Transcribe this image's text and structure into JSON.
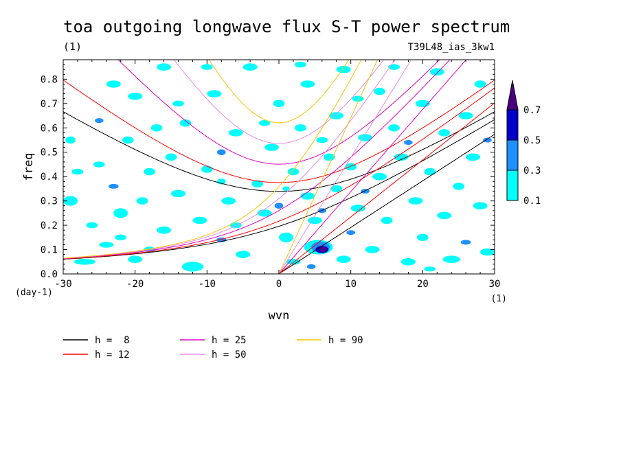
{
  "chart_data": {
    "type": "heatmap",
    "title": "toa outgoing longwave flux S-T power spectrum",
    "units_label": "(1)",
    "run_label": "T39L48_ias_3kw1",
    "xlabel": "wvn",
    "ylabel": "freq",
    "x_units": "(1)",
    "y_units": "(day-1)",
    "xlim": [
      -30,
      30
    ],
    "ylim": [
      0,
      0.88
    ],
    "x_ticks": [
      -30,
      -20,
      -10,
      0,
      10,
      20,
      30
    ],
    "x_tick_labels": [
      "-30",
      "-20",
      "-10",
      "0",
      "10",
      "20",
      "30"
    ],
    "y_ticks": [
      0,
      0.1,
      0.2,
      0.3,
      0.4,
      0.5,
      0.6,
      0.7,
      0.8
    ],
    "y_tick_labels": [
      "0.0",
      "0.1",
      "0.2",
      "0.3",
      "0.4",
      "0.5",
      "0.6",
      "0.7",
      "0.8"
    ],
    "colorbar": {
      "levels": [
        0.1,
        0.3,
        0.5,
        0.7
      ],
      "labels": [
        "0.1",
        "0.3",
        "0.5",
        "0.7"
      ],
      "colors": [
        "#00ffff",
        "#1e90ff",
        "#0000cd",
        "#4b0082"
      ]
    },
    "blobs": [
      [
        -29,
        0.55,
        0.7,
        0.015,
        1
      ],
      [
        -28,
        0.42,
        0.8,
        0.012,
        1
      ],
      [
        -29,
        0.3,
        1,
        0.02,
        1
      ],
      [
        -27,
        0.05,
        1.5,
        0.012,
        1
      ],
      [
        -25,
        0.45,
        0.8,
        0.012,
        1
      ],
      [
        -25,
        0.63,
        0.6,
        0.01,
        2
      ],
      [
        -24,
        0.12,
        1,
        0.012,
        1
      ],
      [
        -23,
        0.78,
        1,
        0.015,
        1
      ],
      [
        -23,
        0.36,
        0.7,
        0.01,
        2
      ],
      [
        -22,
        0.25,
        1,
        0.02,
        1
      ],
      [
        -21,
        0.55,
        0.8,
        0.015,
        1
      ],
      [
        -20,
        0.73,
        1,
        0.015,
        1
      ],
      [
        -20,
        0.06,
        1,
        0.015,
        1
      ],
      [
        -19,
        0.3,
        0.8,
        0.015,
        1
      ],
      [
        -18,
        0.42,
        0.8,
        0.015,
        1
      ],
      [
        -17,
        0.6,
        0.8,
        0.015,
        1
      ],
      [
        -16,
        0.18,
        1,
        0.015,
        1
      ],
      [
        -16,
        0.85,
        1,
        0.015,
        1
      ],
      [
        -15,
        0.48,
        0.8,
        0.015,
        1
      ],
      [
        -14,
        0.33,
        1,
        0.015,
        1
      ],
      [
        -13,
        0.62,
        0.8,
        0.015,
        1
      ],
      [
        -12,
        0.03,
        1.5,
        0.02,
        1
      ],
      [
        -11,
        0.22,
        1,
        0.015,
        1
      ],
      [
        -10,
        0.43,
        0.8,
        0.015,
        1
      ],
      [
        -9,
        0.74,
        1,
        0.015,
        1
      ],
      [
        -8,
        0.5,
        0.6,
        0.012,
        2
      ],
      [
        -8,
        0.14,
        0.7,
        0.01,
        2
      ],
      [
        -7,
        0.3,
        1,
        0.015,
        1
      ],
      [
        -6,
        0.58,
        1,
        0.015,
        1
      ],
      [
        -5,
        0.08,
        1,
        0.015,
        1
      ],
      [
        -4,
        0.85,
        1,
        0.015,
        1
      ],
      [
        -3,
        0.37,
        0.8,
        0.015,
        1
      ],
      [
        -2,
        0.25,
        1,
        0.015,
        1
      ],
      [
        -1,
        0.52,
        1,
        0.015,
        1
      ],
      [
        0,
        0.7,
        0.8,
        0.015,
        1
      ],
      [
        0,
        0.28,
        0.6,
        0.012,
        2
      ],
      [
        1,
        0.15,
        1,
        0.02,
        1
      ],
      [
        2,
        0.42,
        0.8,
        0.015,
        1
      ],
      [
        2,
        0.05,
        1,
        0.012,
        1
      ],
      [
        3,
        0.6,
        0.8,
        0.015,
        1
      ],
      [
        4,
        0.32,
        1,
        0.015,
        1
      ],
      [
        4,
        0.78,
        1,
        0.015,
        1
      ],
      [
        5,
        0.22,
        1,
        0.015,
        1
      ],
      [
        5.5,
        0.11,
        2,
        0.03,
        1
      ],
      [
        5.8,
        0.11,
        1.3,
        0.022,
        2
      ],
      [
        6,
        0.1,
        0.9,
        0.015,
        3
      ],
      [
        6.2,
        0.1,
        0.5,
        0.01,
        4
      ],
      [
        6,
        0.26,
        0.6,
        0.01,
        2
      ],
      [
        4.5,
        0.03,
        0.6,
        0.01,
        2
      ],
      [
        7,
        0.48,
        0.8,
        0.015,
        1
      ],
      [
        8,
        0.65,
        1,
        0.015,
        1
      ],
      [
        8,
        0.35,
        0.8,
        0.015,
        1
      ],
      [
        9,
        0.84,
        1,
        0.015,
        1
      ],
      [
        9,
        0.06,
        1,
        0.015,
        1
      ],
      [
        10,
        0.44,
        0.8,
        0.015,
        1
      ],
      [
        10,
        0.17,
        0.6,
        0.01,
        2
      ],
      [
        11,
        0.27,
        1,
        0.015,
        1
      ],
      [
        12,
        0.56,
        1,
        0.015,
        1
      ],
      [
        12,
        0.34,
        0.6,
        0.01,
        2
      ],
      [
        13,
        0.1,
        1,
        0.015,
        1
      ],
      [
        14,
        0.75,
        0.8,
        0.015,
        1
      ],
      [
        14,
        0.4,
        1,
        0.015,
        1
      ],
      [
        15,
        0.22,
        0.8,
        0.015,
        1
      ],
      [
        16,
        0.6,
        0.8,
        0.015,
        1
      ],
      [
        17,
        0.48,
        1,
        0.015,
        1
      ],
      [
        18,
        0.54,
        0.6,
        0.01,
        2
      ],
      [
        18,
        0.05,
        1,
        0.015,
        1
      ],
      [
        19,
        0.3,
        1,
        0.015,
        1
      ],
      [
        20,
        0.7,
        1,
        0.015,
        1
      ],
      [
        20,
        0.15,
        0.8,
        0.015,
        1
      ],
      [
        21,
        0.42,
        0.8,
        0.015,
        1
      ],
      [
        22,
        0.83,
        1,
        0.015,
        1
      ],
      [
        23,
        0.24,
        1,
        0.015,
        1
      ],
      [
        23,
        0.58,
        0.8,
        0.015,
        1
      ],
      [
        24,
        0.06,
        1.2,
        0.015,
        1
      ],
      [
        25,
        0.36,
        0.8,
        0.015,
        1
      ],
      [
        26,
        0.65,
        1,
        0.015,
        1
      ],
      [
        26,
        0.13,
        0.7,
        0.01,
        2
      ],
      [
        27,
        0.48,
        1,
        0.015,
        1
      ],
      [
        28,
        0.78,
        0.8,
        0.015,
        1
      ],
      [
        28,
        0.28,
        1,
        0.015,
        1
      ],
      [
        29,
        0.55,
        0.6,
        0.01,
        2
      ],
      [
        29,
        0.09,
        1,
        0.015,
        1
      ],
      [
        -26,
        0.2,
        0.8,
        0.012,
        1
      ],
      [
        -18,
        0.1,
        0.8,
        0.012,
        1
      ],
      [
        -14,
        0.7,
        0.8,
        0.012,
        1
      ],
      [
        -6,
        0.2,
        0.8,
        0.012,
        1
      ],
      [
        -2,
        0.62,
        0.8,
        0.012,
        1
      ],
      [
        3,
        0.86,
        0.8,
        0.012,
        1
      ],
      [
        6,
        0.55,
        0.8,
        0.012,
        1
      ],
      [
        11,
        0.72,
        0.8,
        0.012,
        1
      ],
      [
        16,
        0.85,
        0.8,
        0.012,
        1
      ],
      [
        21,
        0.02,
        0.8,
        0.01,
        1
      ],
      [
        -10,
        0.85,
        0.8,
        0.012,
        1
      ],
      [
        -22,
        0.15,
        0.8,
        0.012,
        1
      ],
      [
        1,
        0.35,
        0.5,
        0.01,
        1
      ],
      [
        -8,
        0.38,
        0.6,
        0.012,
        1
      ]
    ],
    "series": [
      {
        "name": "h =  8",
        "color": "#000000",
        "h": 8
      },
      {
        "name": "h = 12",
        "color": "#ff0000",
        "h": 12
      },
      {
        "name": "h = 25",
        "color": "#e000c0",
        "h": 25
      },
      {
        "name": "h = 50",
        "color": "#e88ce8",
        "h": 50
      },
      {
        "name": "h = 90",
        "color": "#f5c400",
        "h": 90
      }
    ]
  }
}
